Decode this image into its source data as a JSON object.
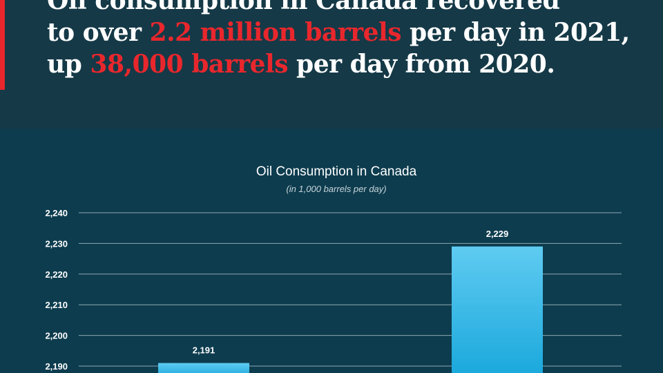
{
  "headline": {
    "line1": "Oil consumption in Canada recovered",
    "line2_pre": "to over ",
    "line2_hl": "2.2 million barrels",
    "line2_post": " per day in 2021,",
    "line3_pre": "up ",
    "line3_hl": "38,000 barrels",
    "line3_post": " per day from 2020."
  },
  "colors": {
    "accent": "#e8272d",
    "bar_top": "#5fcbf1",
    "bar_bottom": "#1aa8dc",
    "background": "#0b3a4c"
  },
  "chart_data": {
    "type": "bar",
    "title": "Oil Consumption in Canada",
    "subtitle": "(in 1,000 barrels per day)",
    "xlabel": "",
    "ylabel": "",
    "categories": [
      "",
      ""
    ],
    "values": [
      2191,
      2229
    ],
    "value_labels": [
      "2,191",
      "2,229"
    ],
    "ylim": [
      2190,
      2240
    ],
    "yticks": [
      2190,
      2200,
      2210,
      2220,
      2230,
      2240
    ],
    "ytick_labels": [
      "2,190",
      "2,200",
      "2,210",
      "2,220",
      "2,230",
      "2,240"
    ],
    "grid": true
  }
}
